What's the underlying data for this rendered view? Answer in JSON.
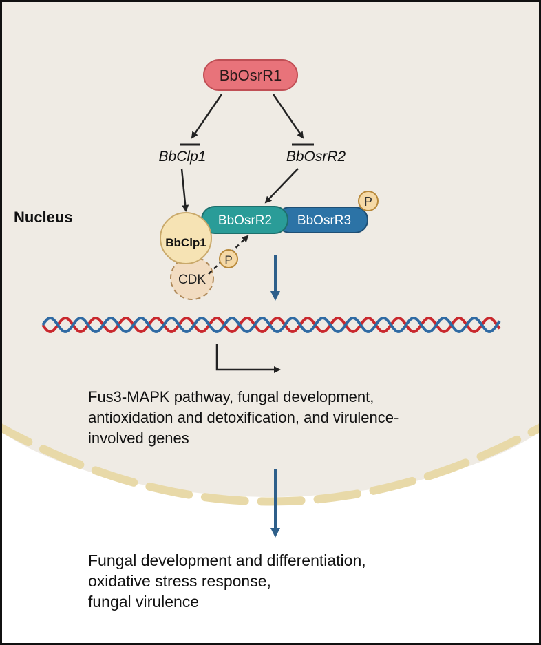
{
  "nucleus_label": "Nucleus",
  "nodes": {
    "osrr1": "BbOsrR1",
    "clp1_gene": "BbClp1",
    "osrr2_gene": "BbOsrR2",
    "clp1_protein": "BbClp1",
    "osrr2_protein": "BbOsrR2",
    "osrr3_protein": "BbOsrR3",
    "cdk": "CDK",
    "phospho_1": "P",
    "phospho_2": "P"
  },
  "target_genes_lines": [
    "Fus3-MAPK pathway, fungal development,",
    "antioxidation and detoxification, and virulence-",
    "involved genes"
  ],
  "outcome_lines": [
    "Fungal development and differentiation,",
    "oxidative stress response,",
    "fungal virulence"
  ],
  "colors": {
    "nucleus_fill": "#efebe4",
    "membrane": "#e8d9a8",
    "osrr1_fill": "#e8737a",
    "osrr2_fill": "#2a9c98",
    "osrr3_fill": "#2c73a6",
    "clp1_fill": "#f6e3b4",
    "cdk_fill": "#f2dcc1",
    "phospho_fill": "#f5d9a6",
    "dna_red": "#c9282d",
    "dna_blue": "#2f6aa3",
    "flow_arrow": "#2e5f8a"
  }
}
